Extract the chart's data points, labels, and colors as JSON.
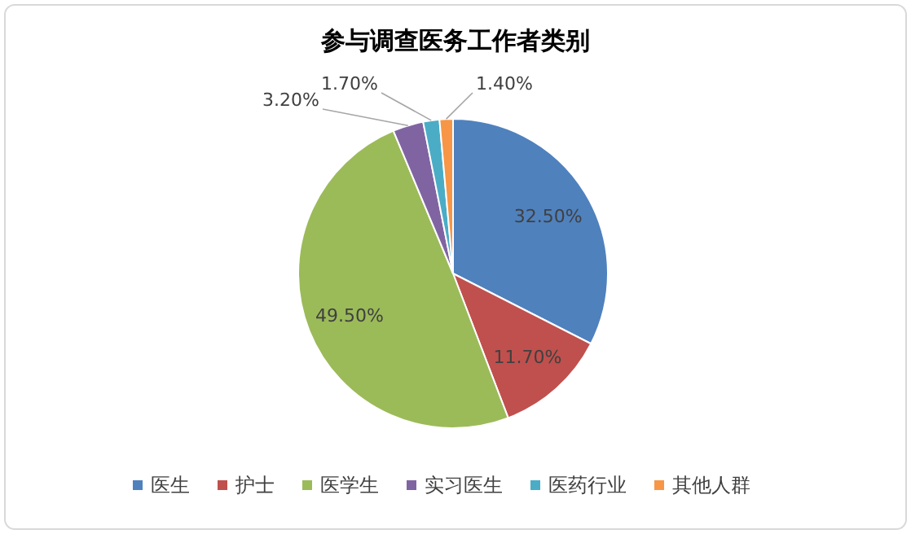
{
  "chart_data": {
    "type": "pie",
    "title": "参与调查医务工作者类别",
    "categories": [
      "医生",
      "护士",
      "医学生",
      "实习医生",
      "医药行业",
      "其他人群"
    ],
    "values": [
      32.5,
      11.7,
      49.5,
      3.2,
      1.7,
      1.4
    ],
    "value_labels": [
      "32.50%",
      "11.70%",
      "49.50%",
      "3.20%",
      "1.70%",
      "1.40%"
    ],
    "colors": [
      "#4f81bd",
      "#c0504d",
      "#9bbb59",
      "#8064a2",
      "#4bacc6",
      "#f79646"
    ],
    "legend": "bottom"
  }
}
